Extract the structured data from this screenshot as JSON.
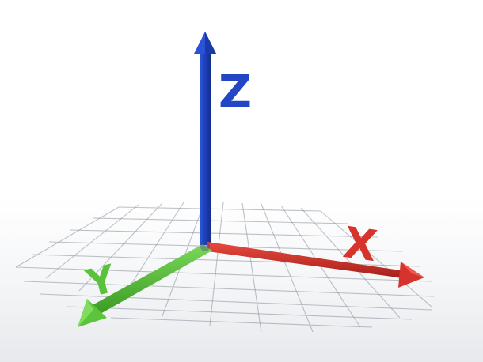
{
  "axes": {
    "x": {
      "label": "X",
      "color": "#d8322c"
    },
    "y": {
      "label": "Y",
      "color": "#58c23a"
    },
    "z": {
      "label": "Z",
      "color": "#2246c4"
    }
  },
  "grid": {
    "color": "#8a8f99"
  }
}
